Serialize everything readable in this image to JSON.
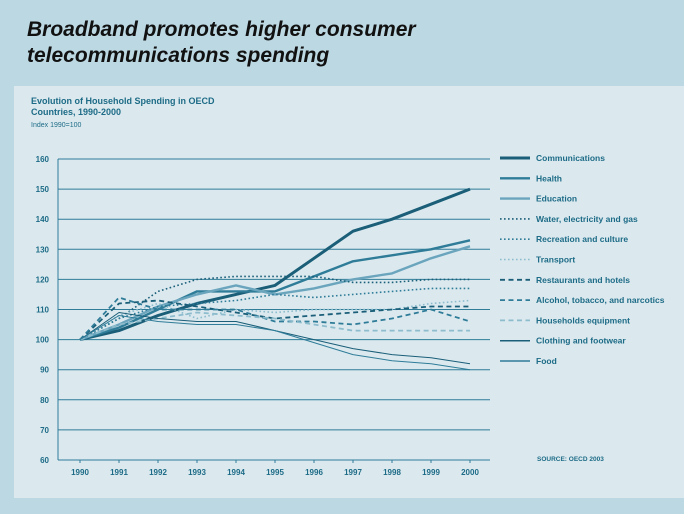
{
  "headline": {
    "line1": "Broadband promotes higher consumer",
    "line2": "telecommunications spending"
  },
  "colors": {
    "background": "#bcd8e3",
    "panel": "#dbe9ef",
    "accent": "#1d6b86"
  },
  "chart_data": {
    "type": "line",
    "title": "Evolution of Household Spending in OECD",
    "subtitle": "Countries, 1990-2000",
    "note": "Index 1990=100",
    "source": "SOURCE: OECD 2003",
    "xlabel": "",
    "ylabel": "",
    "ylim": [
      60,
      160
    ],
    "yticks": [
      "60",
      "70",
      "80",
      "90",
      "100",
      "110",
      "120",
      "130",
      "140",
      "150",
      "160"
    ],
    "categories": [
      "1990",
      "1991",
      "1992",
      "1993",
      "1994",
      "1995",
      "1996",
      "1997",
      "1998",
      "1999",
      "2000"
    ],
    "grid": true,
    "legend_position": "right",
    "series": [
      {
        "name": "Communications",
        "color": "#1a5e78",
        "style": "solid",
        "width": 3,
        "values": [
          100,
          103,
          108,
          112,
          115,
          118,
          127,
          136,
          140,
          145,
          150
        ]
      },
      {
        "name": "Health",
        "color": "#2f7c98",
        "style": "solid",
        "width": 2.4,
        "values": [
          100,
          104,
          110,
          116,
          116,
          116,
          121,
          126,
          128,
          130,
          133
        ]
      },
      {
        "name": "Education",
        "color": "#6aa5bd",
        "style": "solid",
        "width": 2.4,
        "values": [
          100,
          105,
          111,
          115,
          118,
          115,
          117,
          120,
          122,
          127,
          131
        ]
      },
      {
        "name": "Water, electricity and gas",
        "color": "#1a5e78",
        "style": "dotted",
        "width": 1.6,
        "values": [
          100,
          107,
          116,
          120,
          121,
          121,
          121,
          119,
          119,
          120,
          120
        ]
      },
      {
        "name": "Recreation and culture",
        "color": "#2f7c98",
        "style": "dotted",
        "width": 1.6,
        "values": [
          100,
          107,
          111,
          112,
          113,
          115,
          114,
          115,
          116,
          117,
          117
        ]
      },
      {
        "name": "Transport",
        "color": "#8dbccd",
        "style": "dotted",
        "width": 1.6,
        "values": [
          100,
          108,
          112,
          107,
          110,
          109,
          110,
          110,
          110,
          112,
          113
        ]
      },
      {
        "name": "Restaurants and hotels",
        "color": "#1a5e78",
        "style": "dashed",
        "width": 1.8,
        "values": [
          100,
          112,
          113,
          111,
          109,
          107,
          108,
          109,
          110,
          111,
          111
        ]
      },
      {
        "name": "Alcohol, tobacco, and narcotics",
        "color": "#2f7c98",
        "style": "dashed",
        "width": 1.8,
        "values": [
          100,
          114,
          110,
          110,
          110,
          106,
          106,
          105,
          107,
          110,
          106
        ]
      },
      {
        "name": "Households equipment",
        "color": "#8dbccd",
        "style": "dashed",
        "width": 1.8,
        "values": [
          100,
          105,
          107,
          109,
          108,
          107,
          105,
          103,
          103,
          103,
          103
        ]
      },
      {
        "name": "Clothing and footwear",
        "color": "#1a5e78",
        "style": "solid",
        "width": 1,
        "values": [
          100,
          109,
          107,
          106,
          106,
          103,
          100,
          97,
          95,
          94,
          92
        ]
      },
      {
        "name": "Food",
        "color": "#2f7c98",
        "style": "solid",
        "width": 1,
        "values": [
          100,
          108,
          106,
          105,
          105,
          103,
          99,
          95,
          93,
          92,
          90
        ]
      }
    ]
  }
}
